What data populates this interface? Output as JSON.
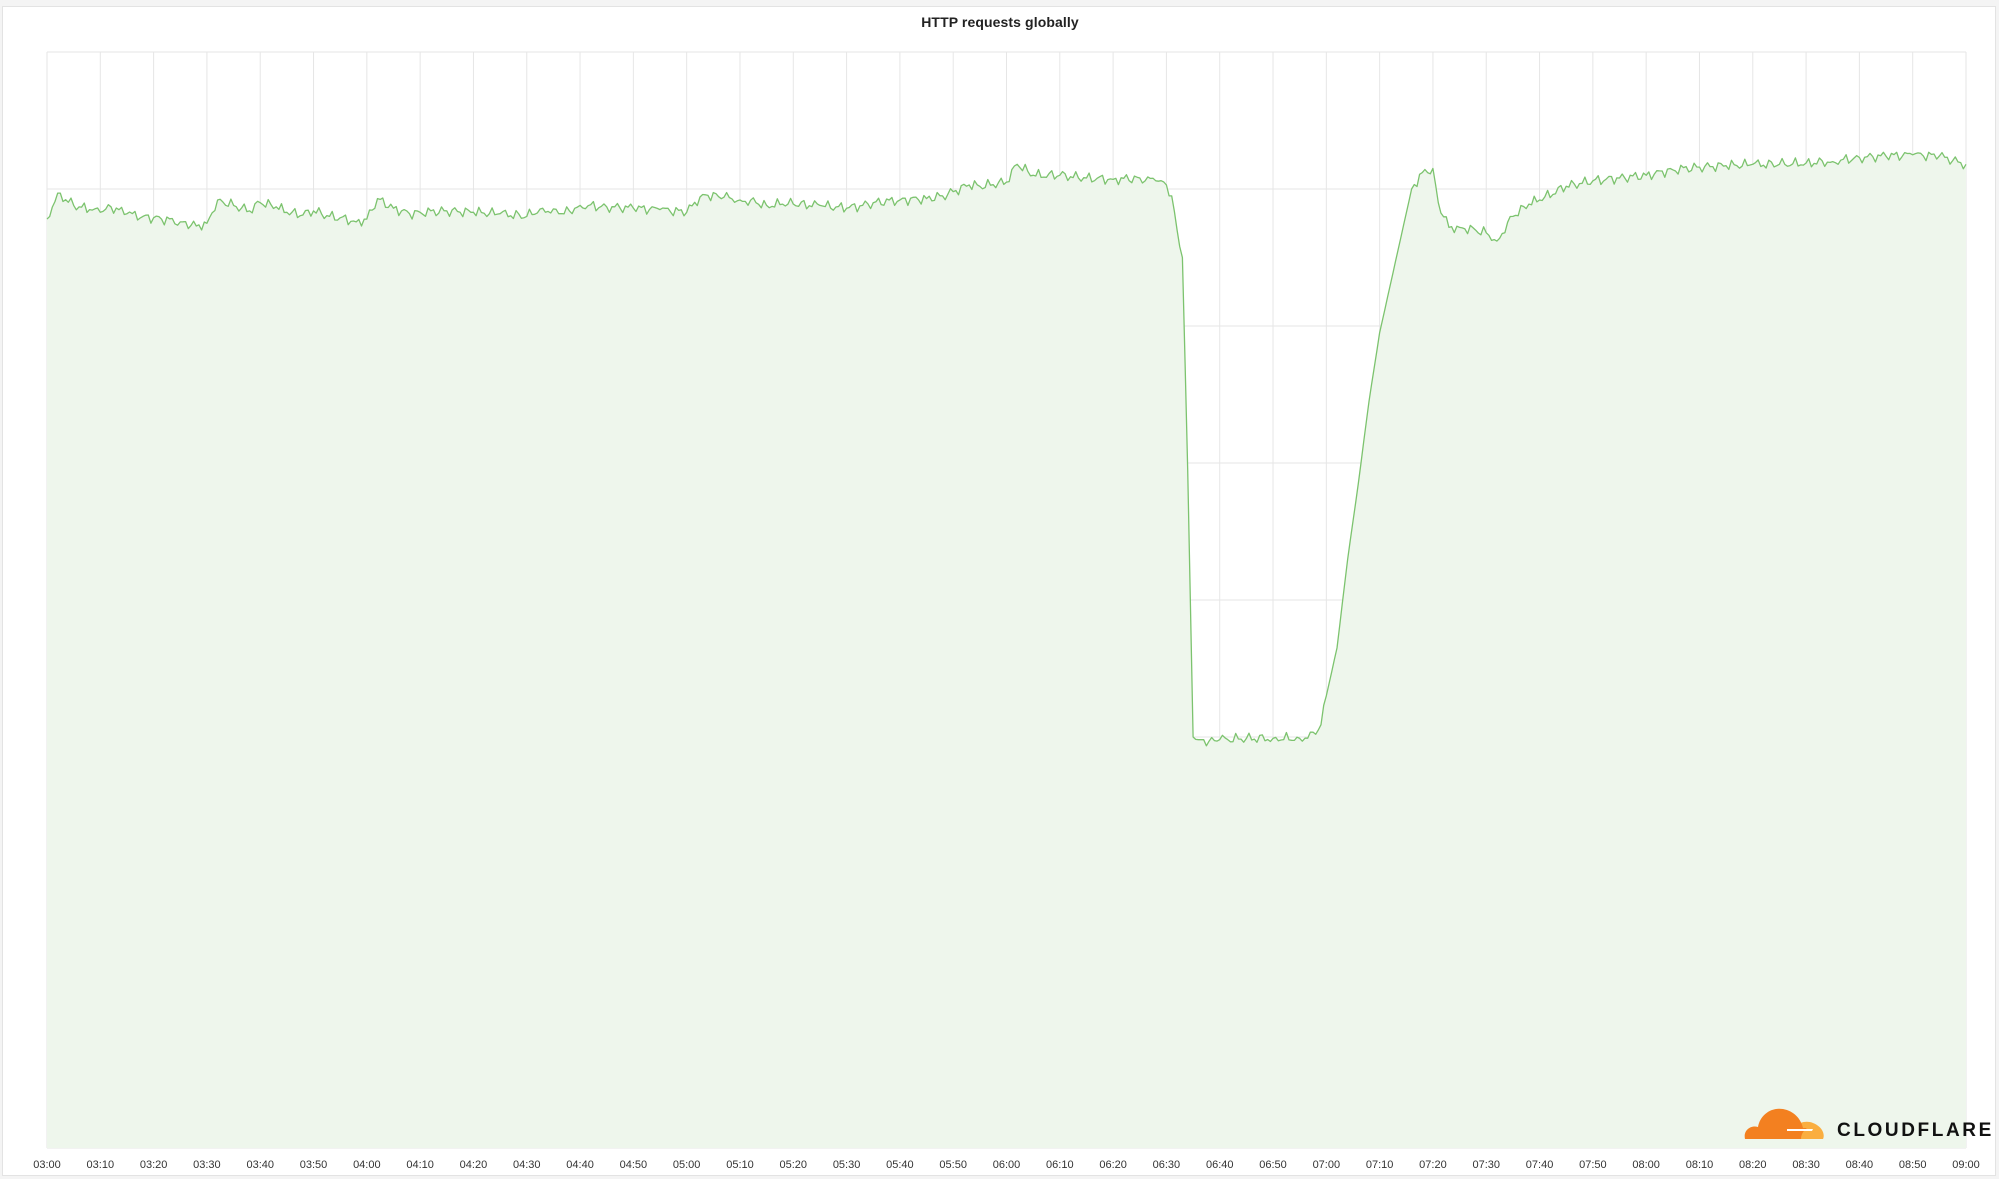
{
  "chart_data": {
    "type": "area",
    "title": "HTTP requests globally",
    "xlabel": "",
    "ylabel": "",
    "y_axis_labels_visible": false,
    "grid": true,
    "legend": "none",
    "x_tick_labels": [
      "03:00",
      "03:10",
      "03:20",
      "03:30",
      "03:40",
      "03:50",
      "04:00",
      "04:10",
      "04:20",
      "04:30",
      "04:40",
      "04:50",
      "05:00",
      "05:10",
      "05:20",
      "05:30",
      "05:40",
      "05:50",
      "06:00",
      "06:10",
      "06:20",
      "06:30",
      "06:40",
      "06:50",
      "07:00",
      "07:10",
      "07:20",
      "07:30",
      "07:40",
      "07:50",
      "08:00",
      "08:10",
      "08:20",
      "08:30",
      "08:40",
      "08:50",
      "09:00"
    ],
    "xlim": [
      "03:00",
      "09:00"
    ],
    "ylim": [
      0,
      8
    ],
    "y_gridlines": 8,
    "series": [
      {
        "color": "#7cc36e",
        "fill": "#eef6ec",
        "x": [
          "03:00",
          "03:02",
          "03:05",
          "03:08",
          "03:10",
          "03:12",
          "03:15",
          "03:18",
          "03:20",
          "03:25",
          "03:28",
          "03:30",
          "03:32",
          "03:35",
          "03:38",
          "03:40",
          "03:43",
          "03:45",
          "03:48",
          "03:50",
          "03:53",
          "03:55",
          "03:58",
          "04:00",
          "04:02",
          "04:05",
          "04:08",
          "04:10",
          "04:15",
          "04:20",
          "04:25",
          "04:30",
          "04:33",
          "04:36",
          "04:38",
          "04:40",
          "04:45",
          "04:50",
          "04:55",
          "05:00",
          "05:03",
          "05:07",
          "05:10",
          "05:13",
          "05:15",
          "05:18",
          "05:20",
          "05:25",
          "05:30",
          "05:33",
          "05:35",
          "05:40",
          "05:45",
          "05:48",
          "05:50",
          "05:53",
          "05:55",
          "06:00",
          "06:02",
          "06:05",
          "06:10",
          "06:15",
          "06:20",
          "06:25",
          "06:28",
          "06:30",
          "06:31",
          "06:32",
          "06:33",
          "06:34",
          "06:35",
          "06:36",
          "06:37",
          "06:38",
          "06:40",
          "06:45",
          "06:50",
          "06:55",
          "06:58",
          "06:59",
          "07:00",
          "07:02",
          "07:04",
          "07:06",
          "07:08",
          "07:10",
          "07:12",
          "07:14",
          "07:16",
          "07:18",
          "07:20",
          "07:21",
          "07:23",
          "07:25",
          "07:28",
          "07:30",
          "07:32",
          "07:35",
          "07:38",
          "07:40",
          "07:45",
          "07:50",
          "07:55",
          "08:00",
          "08:05",
          "08:10",
          "08:15",
          "08:20",
          "08:25",
          "08:30",
          "08:35",
          "08:40",
          "08:45",
          "08:50",
          "08:55",
          "09:00"
        ],
        "values": [
          6.78,
          6.97,
          6.88,
          6.85,
          6.83,
          6.87,
          6.82,
          6.8,
          6.79,
          6.76,
          6.73,
          6.75,
          6.92,
          6.88,
          6.84,
          6.9,
          6.87,
          6.83,
          6.81,
          6.84,
          6.8,
          6.79,
          6.76,
          6.78,
          6.93,
          6.86,
          6.82,
          6.83,
          6.84,
          6.83,
          6.82,
          6.8,
          6.86,
          6.82,
          6.84,
          6.88,
          6.87,
          6.86,
          6.85,
          6.83,
          6.96,
          6.94,
          6.92,
          6.9,
          6.88,
          6.89,
          6.89,
          6.88,
          6.86,
          6.88,
          6.9,
          6.92,
          6.93,
          6.95,
          6.98,
          7.03,
          7.02,
          7.05,
          7.18,
          7.1,
          7.1,
          7.08,
          7.07,
          7.08,
          7.06,
          7.03,
          6.95,
          6.7,
          6.5,
          4.95,
          3.0,
          2.98,
          2.98,
          2.97,
          2.98,
          2.99,
          2.99,
          2.99,
          3.02,
          3.09,
          3.3,
          3.65,
          4.3,
          4.85,
          5.45,
          5.95,
          6.3,
          6.65,
          7.0,
          7.12,
          7.15,
          6.9,
          6.72,
          6.72,
          6.7,
          6.68,
          6.62,
          6.8,
          6.89,
          6.92,
          7.02,
          7.06,
          7.08,
          7.1,
          7.14,
          7.16,
          7.17,
          7.18,
          7.18,
          7.19,
          7.2,
          7.23,
          7.24,
          7.25,
          7.24,
          7.18
        ]
      }
    ]
  },
  "branding": {
    "logo_text": "CLOUDFLARE",
    "logo_mark": "cloud-icon",
    "logo_colors": [
      "#f38020",
      "#faae40"
    ]
  }
}
